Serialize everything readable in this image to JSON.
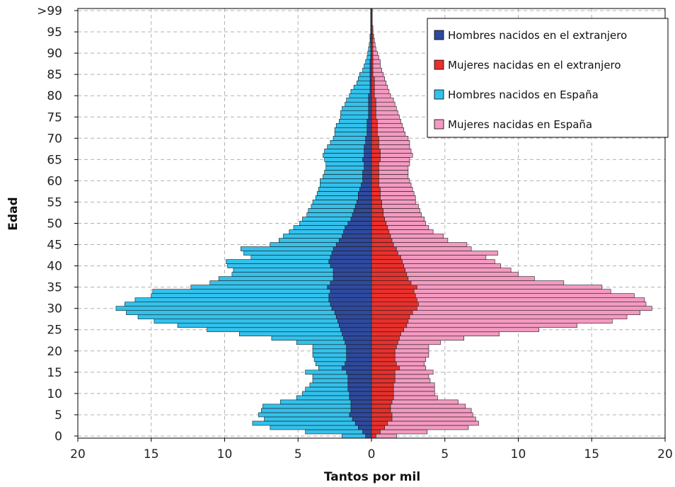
{
  "chart_data": {
    "type": "bar",
    "orientation": "horizontal",
    "layout": "population-pyramid",
    "xlabel": "Tantos por mil",
    "ylabel": "Edad",
    "xlim": [
      -20,
      20
    ],
    "x_ticks": [
      "20",
      "15",
      "10",
      "5",
      "0",
      "5",
      "10",
      "15",
      "20"
    ],
    "y_ticks": [
      "0",
      "5",
      "10",
      "15",
      "20",
      "25",
      "30",
      "35",
      "40",
      "45",
      "50",
      "55",
      "60",
      "65",
      "70",
      "75",
      "80",
      "85",
      "90",
      "95",
      ">99"
    ],
    "grid": true,
    "legend_position": "top-right",
    "colors": {
      "hombres_extranjero": "#2e4a9e",
      "mujeres_extranjero": "#e8302c",
      "hombres_espana": "#33c1ec",
      "mujeres_espana": "#f49ac1",
      "edge": "#1a1a1a"
    },
    "age_groups": [
      0,
      1,
      2,
      3,
      4,
      5,
      6,
      7,
      8,
      9,
      10,
      11,
      12,
      13,
      14,
      15,
      16,
      17,
      18,
      19,
      20,
      21,
      22,
      23,
      24,
      25,
      26,
      27,
      28,
      29,
      30,
      31,
      32,
      33,
      34,
      35,
      36,
      37,
      38,
      39,
      40,
      41,
      42,
      43,
      44,
      45,
      46,
      47,
      48,
      49,
      50,
      51,
      52,
      53,
      54,
      55,
      56,
      57,
      58,
      59,
      60,
      61,
      62,
      63,
      64,
      65,
      66,
      67,
      68,
      69,
      70,
      71,
      72,
      73,
      74,
      75,
      76,
      77,
      78,
      79,
      80,
      81,
      82,
      83,
      84,
      85,
      86,
      87,
      88,
      89,
      90,
      91,
      92,
      93,
      94,
      95,
      96,
      97,
      98,
      99,
      ">99"
    ],
    "series": [
      {
        "name": "Hombres nacidos en el extranjero",
        "color_key": "hombres_extranjero",
        "side": "left",
        "values": [
          0.4,
          0.6,
          0.9,
          1.1,
          1.3,
          1.5,
          1.4,
          1.4,
          1.4,
          1.5,
          1.5,
          1.6,
          1.6,
          1.6,
          1.6,
          1.7,
          2.0,
          1.8,
          1.7,
          1.7,
          1.7,
          1.7,
          1.8,
          1.9,
          2.0,
          2.1,
          2.2,
          2.3,
          2.4,
          2.5,
          2.7,
          2.8,
          2.9,
          2.9,
          2.8,
          3.0,
          2.8,
          2.6,
          2.6,
          2.6,
          2.8,
          2.9,
          2.8,
          2.7,
          2.6,
          2.4,
          2.2,
          2.0,
          1.9,
          1.8,
          1.6,
          1.4,
          1.3,
          1.2,
          1.1,
          1.0,
          0.9,
          0.9,
          0.8,
          0.7,
          0.6,
          0.6,
          0.6,
          0.5,
          0.5,
          0.6,
          0.5,
          0.5,
          0.5,
          0.4,
          0.4,
          0.3,
          0.3,
          0.3,
          0.3,
          0.2,
          0.2,
          0.2,
          0.2,
          0.2,
          0.2,
          0.1,
          0.1,
          0.1,
          0.1,
          0.1,
          0.1,
          0.1,
          0.1,
          0.05,
          0.05,
          0.05,
          0.05,
          0.05,
          0.05,
          0.05,
          0.05,
          0.05,
          0.05,
          0.05,
          0.05
        ]
      },
      {
        "name": "Mujeres nacidas en el extranjero",
        "color_key": "mujeres_extranjero",
        "side": "right",
        "values": [
          0.3,
          0.6,
          0.9,
          1.1,
          1.4,
          1.4,
          1.3,
          1.3,
          1.4,
          1.5,
          1.5,
          1.5,
          1.5,
          1.6,
          1.6,
          1.6,
          1.9,
          1.7,
          1.6,
          1.6,
          1.6,
          1.7,
          1.8,
          1.9,
          2.0,
          2.2,
          2.4,
          2.5,
          2.6,
          2.8,
          3.1,
          3.2,
          3.1,
          3.0,
          2.9,
          3.1,
          2.7,
          2.5,
          2.4,
          2.3,
          2.2,
          2.1,
          2.0,
          1.8,
          1.7,
          1.5,
          1.4,
          1.3,
          1.2,
          1.1,
          1.0,
          0.9,
          0.8,
          0.8,
          0.7,
          0.7,
          0.6,
          0.6,
          0.6,
          0.5,
          0.5,
          0.5,
          0.5,
          0.5,
          0.5,
          0.6,
          0.6,
          0.6,
          0.5,
          0.5,
          0.5,
          0.4,
          0.4,
          0.4,
          0.4,
          0.3,
          0.3,
          0.3,
          0.3,
          0.3,
          0.2,
          0.2,
          0.2,
          0.2,
          0.2,
          0.1,
          0.1,
          0.1,
          0.1,
          0.1,
          0.1,
          0.1,
          0.1,
          0.1,
          0.1,
          0.05,
          0.05,
          0.05,
          0.05,
          0.05,
          0.05
        ]
      },
      {
        "name": "Hombres nacidos en España",
        "color_key": "hombres_espana",
        "side": "left",
        "values": [
          2.0,
          4.5,
          6.9,
          8.1,
          7.3,
          7.7,
          7.5,
          7.4,
          6.2,
          5.1,
          4.7,
          4.5,
          4.2,
          4.0,
          4.0,
          4.5,
          3.6,
          3.8,
          3.9,
          4.0,
          4.0,
          4.0,
          5.1,
          6.8,
          9.0,
          11.2,
          13.2,
          14.8,
          15.9,
          16.7,
          17.4,
          16.8,
          16.1,
          15.0,
          14.9,
          12.3,
          11.0,
          10.4,
          9.5,
          9.4,
          9.8,
          9.9,
          8.2,
          8.7,
          8.9,
          6.9,
          6.3,
          6.0,
          5.6,
          5.3,
          4.9,
          4.7,
          4.4,
          4.3,
          4.1,
          4.0,
          3.8,
          3.7,
          3.6,
          3.5,
          3.5,
          3.3,
          3.2,
          3.1,
          3.1,
          3.2,
          3.3,
          3.2,
          3.0,
          2.8,
          2.6,
          2.5,
          2.5,
          2.4,
          2.2,
          2.1,
          2.1,
          2.0,
          1.8,
          1.7,
          1.5,
          1.4,
          1.2,
          1.0,
          0.9,
          0.8,
          0.6,
          0.5,
          0.4,
          0.3,
          0.25,
          0.2,
          0.15,
          0.1,
          0.1,
          0.05,
          0.05,
          0.05,
          0.05,
          0.05,
          0.05
        ]
      },
      {
        "name": "Mujeres nacidas en España",
        "color_key": "mujeres_espana",
        "side": "right",
        "values": [
          1.7,
          3.8,
          6.6,
          7.3,
          7.1,
          6.9,
          6.8,
          6.4,
          5.9,
          4.5,
          4.3,
          4.3,
          4.3,
          4.0,
          3.9,
          4.2,
          3.7,
          3.6,
          3.7,
          3.9,
          3.9,
          3.9,
          4.7,
          6.3,
          8.7,
          11.4,
          14.0,
          16.4,
          17.4,
          18.3,
          19.1,
          18.7,
          18.6,
          17.9,
          16.3,
          15.7,
          13.1,
          11.1,
          10.0,
          9.5,
          8.8,
          8.4,
          7.8,
          8.6,
          6.8,
          6.5,
          5.2,
          4.9,
          4.2,
          3.9,
          3.7,
          3.6,
          3.4,
          3.3,
          3.2,
          3.0,
          3.0,
          2.9,
          2.8,
          2.7,
          2.6,
          2.5,
          2.5,
          2.5,
          2.6,
          2.6,
          2.8,
          2.7,
          2.6,
          2.6,
          2.5,
          2.3,
          2.2,
          2.1,
          2.0,
          1.9,
          1.8,
          1.7,
          1.6,
          1.5,
          1.3,
          1.2,
          1.1,
          1.0,
          0.9,
          0.8,
          0.7,
          0.6,
          0.6,
          0.5,
          0.4,
          0.3,
          0.25,
          0.2,
          0.15,
          0.1,
          0.1,
          0.05,
          0.05,
          0.05,
          0.05
        ]
      }
    ]
  }
}
